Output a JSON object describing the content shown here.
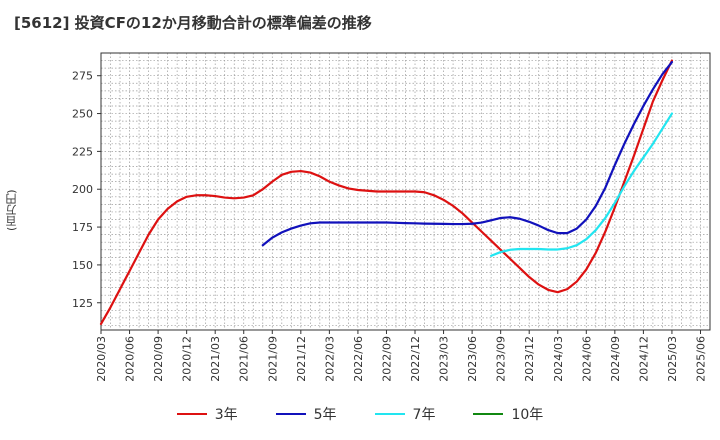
{
  "title": "[5612]  投資CFの12か月移動合計の標準偏差の推移",
  "y_unit": "(百万円)",
  "chart_data": {
    "type": "line",
    "x": [
      "2020/03",
      "2020/06",
      "2020/09",
      "2020/12",
      "2021/03",
      "2021/06",
      "2021/09",
      "2021/12",
      "2022/03",
      "2022/06",
      "2022/09",
      "2022/12",
      "2023/03",
      "2023/06",
      "2023/09",
      "2023/12",
      "2024/03",
      "2024/06",
      "2024/09",
      "2024/12",
      "2025/03",
      "2025/06"
    ],
    "x_tick_labels": [
      "2020/03",
      "2020/06",
      "2020/09",
      "2020/12",
      "2021/03",
      "2021/06",
      "2021/09",
      "2021/12",
      "2022/03",
      "2022/06",
      "2022/09",
      "2022/12",
      "2023/03",
      "2023/06",
      "2023/09",
      "2023/12",
      "2024/03",
      "2024/06",
      "2024/09",
      "2024/12",
      "2025/03",
      "2025/06"
    ],
    "y_ticks": [
      125,
      150,
      175,
      200,
      225,
      250,
      275
    ],
    "ylim": [
      107,
      290
    ],
    "grid": true,
    "legend_position": "bottom",
    "series": [
      {
        "name": "3年",
        "color": "#dd1111",
        "points": [
          [
            "2020/03",
            111
          ],
          [
            "2020/04",
            122
          ],
          [
            "2020/05",
            134
          ],
          [
            "2020/06",
            146
          ],
          [
            "2020/07",
            158
          ],
          [
            "2020/08",
            170
          ],
          [
            "2020/09",
            180
          ],
          [
            "2020/10",
            187
          ],
          [
            "2020/11",
            192
          ],
          [
            "2020/12",
            195
          ],
          [
            "2021/01",
            196
          ],
          [
            "2021/02",
            196
          ],
          [
            "2021/03",
            195.5
          ],
          [
            "2021/04",
            194.5
          ],
          [
            "2021/05",
            194
          ],
          [
            "2021/06",
            194.5
          ],
          [
            "2021/07",
            196
          ],
          [
            "2021/08",
            200
          ],
          [
            "2021/09",
            205
          ],
          [
            "2021/10",
            209.5
          ],
          [
            "2021/11",
            211.5
          ],
          [
            "2021/12",
            212
          ],
          [
            "2022/01",
            211
          ],
          [
            "2022/02",
            208.5
          ],
          [
            "2022/03",
            205
          ],
          [
            "2022/04",
            202.5
          ],
          [
            "2022/05",
            200.5
          ],
          [
            "2022/06",
            199.5
          ],
          [
            "2022/07",
            199
          ],
          [
            "2022/08",
            198.5
          ],
          [
            "2022/09",
            198.5
          ],
          [
            "2022/10",
            198.5
          ],
          [
            "2022/11",
            198.5
          ],
          [
            "2022/12",
            198.5
          ],
          [
            "2023/01",
            198
          ],
          [
            "2023/02",
            196
          ],
          [
            "2023/03",
            193
          ],
          [
            "2023/04",
            189
          ],
          [
            "2023/05",
            184
          ],
          [
            "2023/06",
            178
          ],
          [
            "2023/07",
            172
          ],
          [
            "2023/08",
            166
          ],
          [
            "2023/09",
            160
          ],
          [
            "2023/10",
            154
          ],
          [
            "2023/11",
            148
          ],
          [
            "2023/12",
            142
          ],
          [
            "2024/01",
            137
          ],
          [
            "2024/02",
            133.5
          ],
          [
            "2024/03",
            132
          ],
          [
            "2024/04",
            134
          ],
          [
            "2024/05",
            139
          ],
          [
            "2024/06",
            147
          ],
          [
            "2024/07",
            158
          ],
          [
            "2024/08",
            172
          ],
          [
            "2024/09",
            188
          ],
          [
            "2024/10",
            205
          ],
          [
            "2024/11",
            222
          ],
          [
            "2024/12",
            240
          ],
          [
            "2025/01",
            258
          ],
          [
            "2025/02",
            272
          ],
          [
            "2025/03",
            285
          ]
        ]
      },
      {
        "name": "5年",
        "color": "#1111bb",
        "points": [
          [
            "2021/08",
            163
          ],
          [
            "2021/09",
            168
          ],
          [
            "2021/10",
            171.5
          ],
          [
            "2021/11",
            174
          ],
          [
            "2021/12",
            176
          ],
          [
            "2022/01",
            177.5
          ],
          [
            "2022/02",
            178
          ],
          [
            "2022/03",
            178
          ],
          [
            "2022/04",
            178
          ],
          [
            "2022/05",
            178
          ],
          [
            "2022/06",
            178
          ],
          [
            "2022/07",
            178
          ],
          [
            "2022/08",
            178
          ],
          [
            "2022/09",
            178
          ],
          [
            "2022/10",
            177.8
          ],
          [
            "2022/11",
            177.6
          ],
          [
            "2022/12",
            177.5
          ],
          [
            "2023/01",
            177.3
          ],
          [
            "2023/02",
            177.2
          ],
          [
            "2023/03",
            177.1
          ],
          [
            "2023/04",
            177
          ],
          [
            "2023/05",
            177
          ],
          [
            "2023/06",
            177.2
          ],
          [
            "2023/07",
            178
          ],
          [
            "2023/08",
            179.5
          ],
          [
            "2023/09",
            181
          ],
          [
            "2023/10",
            181.5
          ],
          [
            "2023/11",
            180.5
          ],
          [
            "2023/12",
            178.5
          ],
          [
            "2024/01",
            176
          ],
          [
            "2024/02",
            173
          ],
          [
            "2024/03",
            171
          ],
          [
            "2024/04",
            171
          ],
          [
            "2024/05",
            174
          ],
          [
            "2024/06",
            180
          ],
          [
            "2024/07",
            189
          ],
          [
            "2024/08",
            201
          ],
          [
            "2024/09",
            216
          ],
          [
            "2024/10",
            230
          ],
          [
            "2024/11",
            243
          ],
          [
            "2024/12",
            255
          ],
          [
            "2025/01",
            266
          ],
          [
            "2025/02",
            276
          ],
          [
            "2025/03",
            284
          ]
        ]
      },
      {
        "name": "7年",
        "color": "#22e5f0",
        "points": [
          [
            "2023/08",
            156
          ],
          [
            "2023/09",
            158.5
          ],
          [
            "2023/10",
            160
          ],
          [
            "2023/11",
            160.5
          ],
          [
            "2023/12",
            160.5
          ],
          [
            "2024/01",
            160.5
          ],
          [
            "2024/02",
            160.2
          ],
          [
            "2024/03",
            160.2
          ],
          [
            "2024/04",
            161
          ],
          [
            "2024/05",
            163
          ],
          [
            "2024/06",
            167
          ],
          [
            "2024/07",
            173
          ],
          [
            "2024/08",
            181
          ],
          [
            "2024/09",
            191
          ],
          [
            "2024/10",
            202
          ],
          [
            "2024/11",
            212
          ],
          [
            "2024/12",
            221
          ],
          [
            "2025/01",
            230
          ],
          [
            "2025/02",
            240
          ],
          [
            "2025/03",
            250
          ]
        ]
      },
      {
        "name": "10年",
        "color": "#118811",
        "points": []
      }
    ]
  }
}
